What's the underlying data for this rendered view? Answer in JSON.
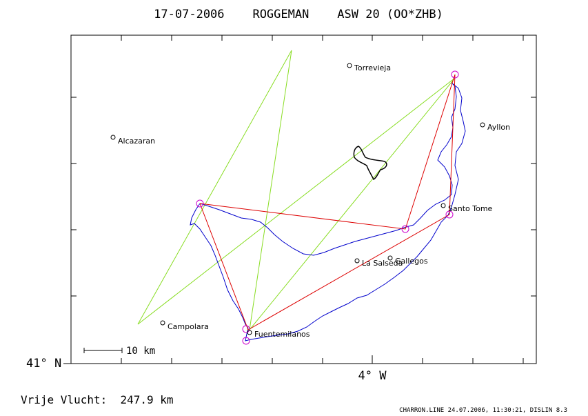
{
  "title": "17-07-2006    ROGGEMAN    ASW 20 (OO*ZHB)",
  "axis": {
    "lat_label": "41° N",
    "lon_label": "4° W"
  },
  "scale_bar": {
    "label": "10 km"
  },
  "footer": {
    "distance_text": "Vrije Vlucht:  247.9 km",
    "credits": "CHARRON.LINE 24.07.2006, 11:30:21, DISLIN 8.3"
  },
  "places": [
    {
      "name": "Torrevieja"
    },
    {
      "name": "Ayllon"
    },
    {
      "name": "Alcazaran"
    },
    {
      "name": "Santo Tome"
    },
    {
      "name": "La Salseda"
    },
    {
      "name": "Gallegos"
    },
    {
      "name": "Campolara"
    },
    {
      "name": "Fuentemilanos"
    }
  ],
  "colors": {
    "frame": "#000000",
    "track": "#0000cc",
    "task_legs": "#dd0000",
    "sector_lines": "#88dd22",
    "turnpoints": "#cc00cc",
    "airspace": "#000000"
  }
}
